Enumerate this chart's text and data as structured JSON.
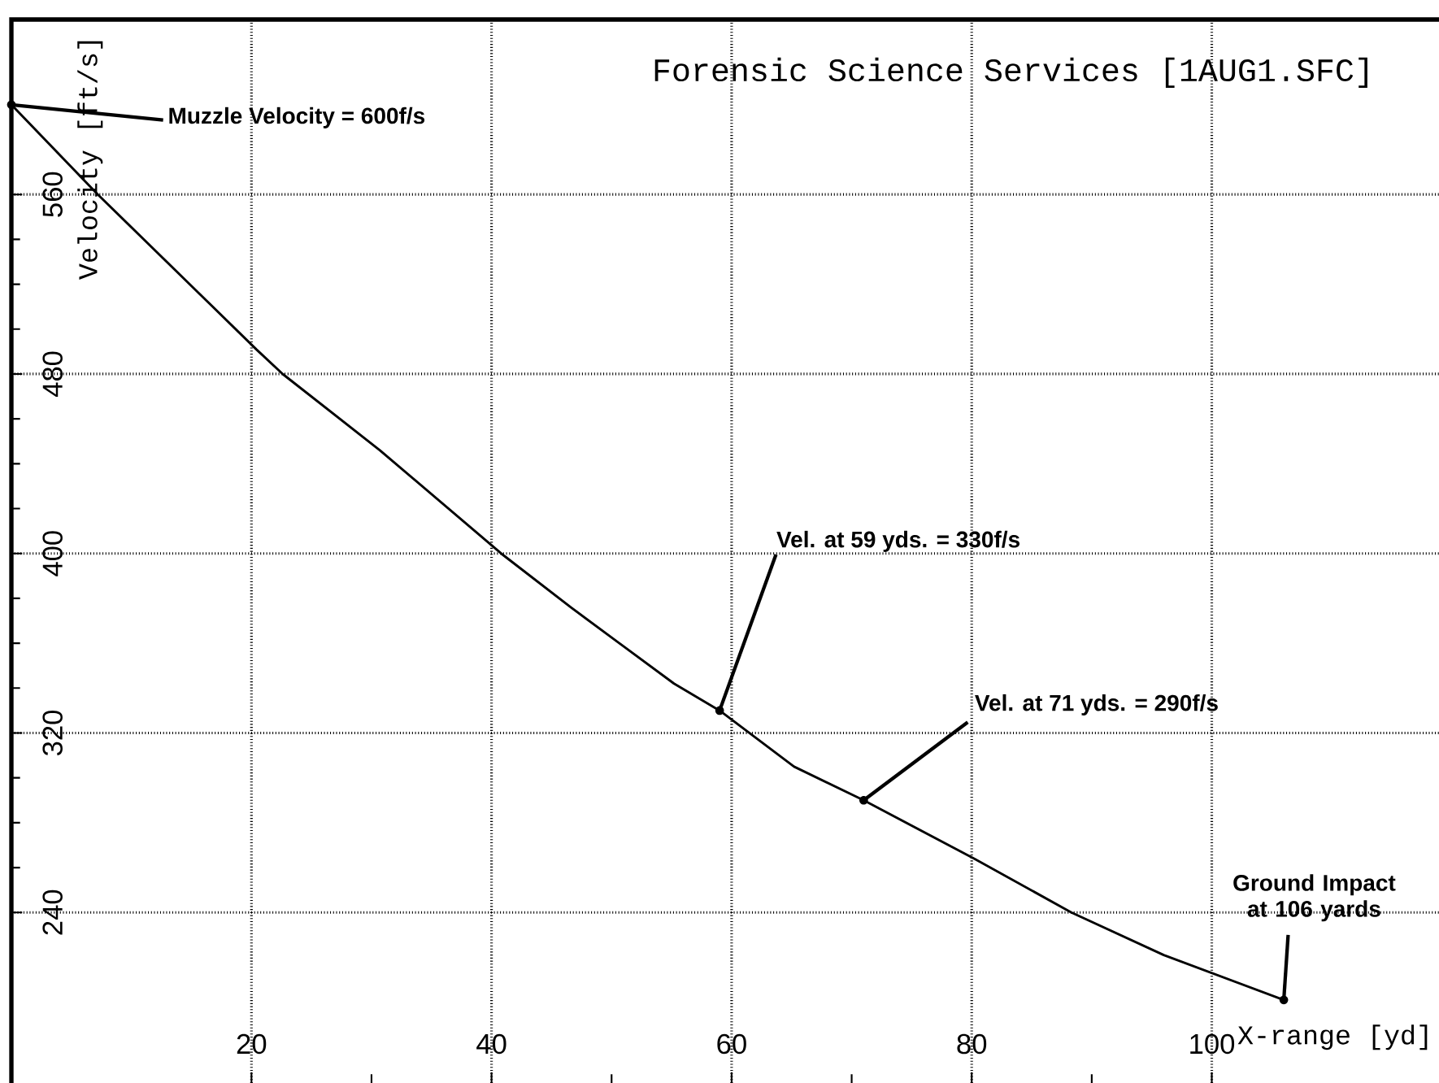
{
  "chart_data": {
    "type": "line",
    "title": "Forensic Science Services  [1AUG1.SFC]",
    "xlabel": "X-range [yd]",
    "ylabel": "Velocity [ft/s]",
    "x": [
      0,
      7.2,
      20.4,
      22.6,
      30.7,
      40.8,
      46.6,
      55.2,
      59,
      65.2,
      71,
      80.2,
      88.3,
      96,
      106
    ],
    "series": [
      {
        "color": "#000000",
        "values": [
          600,
          560,
          491,
          480,
          446,
          400,
          376,
          342,
          330,
          305,
          290,
          264,
          240,
          221,
          201
        ]
      }
    ],
    "xlim": [
      0,
      119.2
    ],
    "ylim": [
      164,
      638
    ],
    "xticks": [
      20,
      40,
      60,
      80,
      100
    ],
    "yticks": [
      240,
      320,
      400,
      480,
      560
    ],
    "grid": true,
    "marker": "none",
    "line_style": "solid",
    "annotations": [
      {
        "text": "Muzzle Velocity = 600f/s",
        "x": 0,
        "y": 600
      },
      {
        "text": "Vel. at 59 yds. = 330f/s",
        "x": 59,
        "y": 330
      },
      {
        "text": "Vel. at 71 yds. = 290f/s",
        "x": 71,
        "y": 290
      },
      {
        "text": "Ground Impact at 106 yards",
        "x": 106,
        "y": 201
      }
    ]
  }
}
